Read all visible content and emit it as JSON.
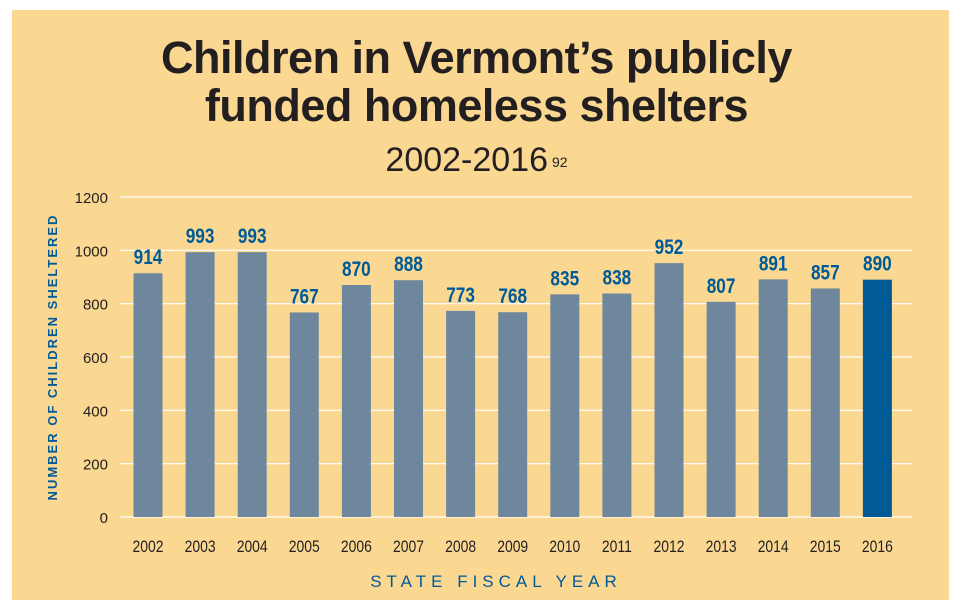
{
  "title_line1": "Children in Vermont’s publicly",
  "title_line2": "funded homeless shelters",
  "subtitle": "2002-2016",
  "subtitle_note": "92",
  "chart_data": {
    "type": "bar",
    "categories": [
      "2002",
      "2003",
      "2004",
      "2005",
      "2006",
      "2007",
      "2008",
      "2009",
      "2010",
      "2011",
      "2012",
      "2013",
      "2014",
      "2015",
      "2016"
    ],
    "values": [
      914,
      993,
      993,
      767,
      870,
      888,
      773,
      768,
      835,
      838,
      952,
      807,
      891,
      857,
      890
    ],
    "data_labels": [
      "914",
      "993",
      "993",
      "767",
      "870",
      "888",
      "773",
      "768",
      "835",
      "838",
      "952",
      "807",
      "891",
      "857",
      "890"
    ],
    "xlabel": "STATE FISCAL YEAR",
    "ylabel": "NUMBER OF CHILDREN SHELTERED",
    "ylim": [
      0,
      1200
    ],
    "yticks": [
      "0",
      "200",
      "400",
      "600",
      "800",
      "1000",
      "1200"
    ],
    "grid": true,
    "highlight_index": 14,
    "colors": {
      "background": "#fbd892",
      "bar": "#6f879c",
      "highlight_bar": "#005a96",
      "data_label": "#005a96",
      "axis_title": "#005a96",
      "tick_label": "#231f20",
      "title": "#231f20",
      "grid": "#ffffff"
    }
  }
}
